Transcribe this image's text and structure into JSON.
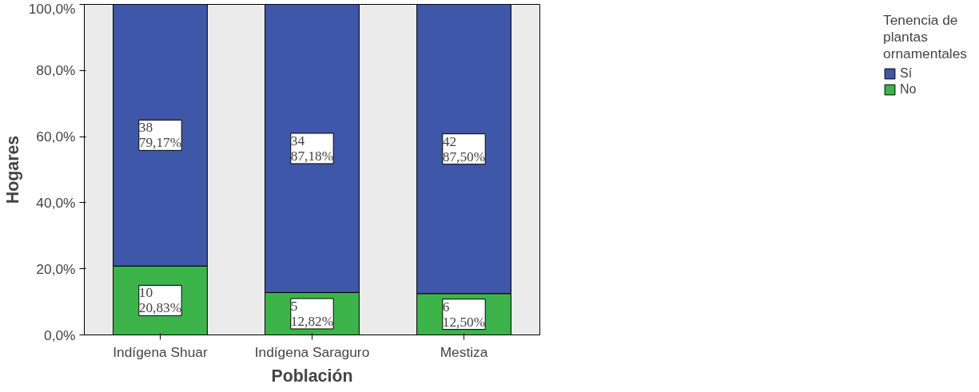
{
  "chart_data": {
    "type": "bar",
    "stacked": true,
    "xlabel": "Población",
    "ylabel": "Hogares",
    "legend_title": "Tenencia de plantas ornamentales",
    "legend": "right",
    "categories": [
      "Indígena Shuar",
      "Indígena Saraguro",
      "Mestiza"
    ],
    "series": [
      {
        "name": "No",
        "color": "#3cb44a",
        "values": [
          20.83,
          12.82,
          12.5
        ],
        "value_labels": [
          "10\n20,83%",
          "5\n12,82%",
          "6\n12,50%"
        ]
      },
      {
        "name": "Sí",
        "color": "#3f57a8",
        "values": [
          79.17,
          87.18,
          87.5
        ],
        "value_labels": [
          "38\n79,17%",
          "34\n87,18%",
          "42\n87,50%"
        ]
      }
    ],
    "ylim": [
      0,
      100
    ],
    "yticks": [
      {
        "value": 0,
        "label": "0,0%"
      },
      {
        "value": 20,
        "label": "20,0%"
      },
      {
        "value": 40,
        "label": "40,0%"
      },
      {
        "value": 60,
        "label": "60,0%"
      },
      {
        "value": 80,
        "label": "80,0%"
      },
      {
        "value": 100,
        "label": "100,0%"
      }
    ],
    "grid": false
  }
}
